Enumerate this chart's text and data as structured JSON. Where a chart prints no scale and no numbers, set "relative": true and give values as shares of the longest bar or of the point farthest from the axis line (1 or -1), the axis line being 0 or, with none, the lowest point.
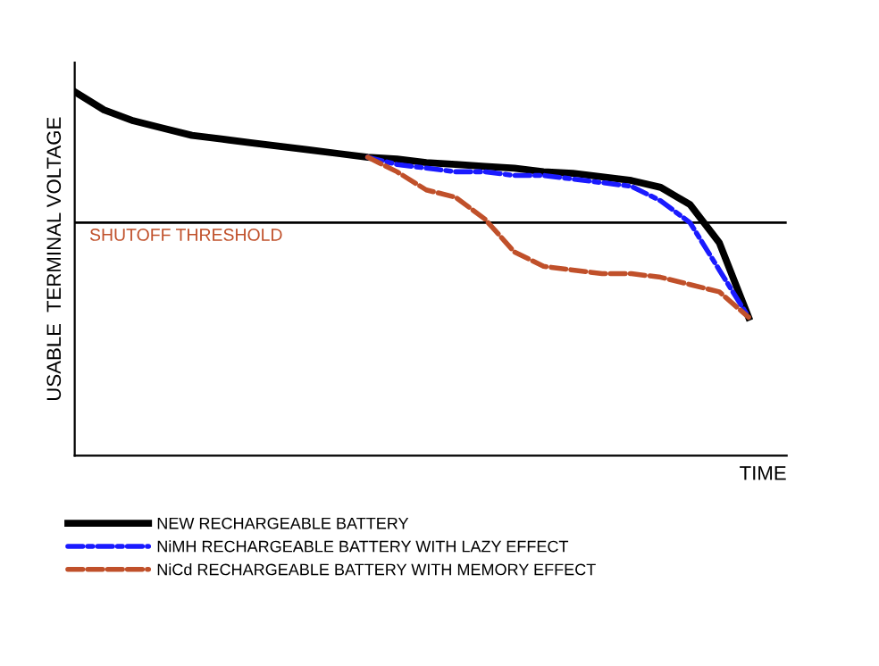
{
  "chart_data": {
    "type": "line",
    "relative": true,
    "xlabel": "TIME",
    "ylabel": "USABLE  TERMINAL VOLTAGE",
    "legend": "bottom",
    "categories": [
      null,
      null,
      null,
      null,
      null,
      null,
      null,
      null,
      null,
      null,
      null,
      null,
      null,
      null,
      null,
      null,
      null,
      null,
      null,
      null,
      null,
      null,
      null,
      null
    ],
    "series": [
      {
        "name": "NEW RECHARGEABLE BATTERY",
        "color": "#000000",
        "line_style": "solid",
        "values": [
          1.0,
          0.95,
          0.92,
          0.9,
          0.88,
          0.87,
          0.86,
          0.85,
          0.84,
          0.83,
          0.82,
          0.815,
          0.805,
          0.8,
          0.795,
          0.79,
          0.78,
          0.776,
          0.766,
          0.756,
          0.737,
          0.69,
          0.585,
          0.38
        ]
      },
      {
        "name": "NiMH RECHARGEABLE BATTERY WITH LAZY EFFECT",
        "color": "#1a1aff",
        "line_style": "dashdot",
        "values": [
          null,
          null,
          null,
          null,
          null,
          null,
          null,
          null,
          null,
          null,
          0.82,
          0.8,
          0.79,
          0.78,
          0.78,
          0.77,
          0.77,
          0.76,
          0.75,
          0.74,
          0.7,
          0.64,
          0.51,
          0.38
        ]
      },
      {
        "name": "NiCd RECHARGEABLE BATTERY WITH MEMORY EFFECT",
        "color": "#c0502a",
        "line_style": "dashed",
        "values": [
          null,
          null,
          null,
          null,
          null,
          null,
          null,
          null,
          null,
          null,
          0.82,
          0.78,
          0.73,
          0.71,
          0.65,
          0.56,
          0.52,
          0.51,
          0.5,
          0.5,
          0.49,
          0.47,
          0.45,
          0.38
        ]
      }
    ],
    "ref_lines": [
      {
        "axis": "y",
        "value": 0.64,
        "label": "SHUTOFF THRESHOLD",
        "color": "#000000"
      }
    ]
  }
}
